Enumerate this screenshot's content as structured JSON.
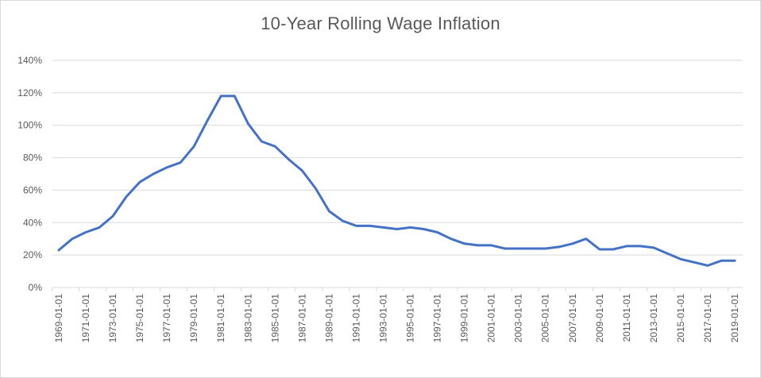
{
  "chart_data": {
    "type": "line",
    "title": "10-Year Rolling Wage Inflation",
    "xlabel": "",
    "ylabel": "",
    "ylim": [
      0,
      1.4
    ],
    "grid": "horizontal",
    "legend": "none",
    "y_ticks": [
      "0%",
      "20%",
      "40%",
      "60%",
      "80%",
      "100%",
      "120%",
      "140%"
    ],
    "x_tick_labels": [
      "1969-01-01",
      "1971-01-01",
      "1973-01-01",
      "1975-01-01",
      "1977-01-01",
      "1979-01-01",
      "1981-01-01",
      "1983-01-01",
      "1985-01-01",
      "1987-01-01",
      "1989-01-01",
      "1991-01-01",
      "1993-01-01",
      "1995-01-01",
      "1997-01-01",
      "1999-01-01",
      "2001-01-01",
      "2003-01-01",
      "2005-01-01",
      "2007-01-01",
      "2009-01-01",
      "2011-01-01",
      "2013-01-01",
      "2015-01-01",
      "2017-01-01",
      "2019-01-01"
    ],
    "series": [
      {
        "name": "10-Year Rolling Wage Inflation",
        "color": "#4472c4",
        "x": [
          1969,
          1970,
          1971,
          1972,
          1973,
          1974,
          1975,
          1976,
          1977,
          1978,
          1979,
          1980,
          1981,
          1982,
          1983,
          1984,
          1985,
          1986,
          1987,
          1988,
          1989,
          1990,
          1991,
          1992,
          1993,
          1994,
          1995,
          1996,
          1997,
          1998,
          1999,
          2000,
          2001,
          2002,
          2003,
          2004,
          2005,
          2006,
          2007,
          2008,
          2009,
          2010,
          2011,
          2012,
          2013,
          2014,
          2015,
          2016,
          2017,
          2018,
          2019
        ],
        "values": [
          0.23,
          0.3,
          0.34,
          0.37,
          0.44,
          0.56,
          0.65,
          0.7,
          0.74,
          0.77,
          0.87,
          1.03,
          1.18,
          1.18,
          1.01,
          0.9,
          0.87,
          0.79,
          0.72,
          0.61,
          0.47,
          0.41,
          0.38,
          0.38,
          0.37,
          0.36,
          0.37,
          0.36,
          0.34,
          0.3,
          0.27,
          0.26,
          0.26,
          0.24,
          0.24,
          0.24,
          0.24,
          0.25,
          0.27,
          0.3,
          0.235,
          0.235,
          0.255,
          0.255,
          0.245,
          0.21,
          0.175,
          0.155,
          0.135,
          0.165,
          0.165
        ]
      }
    ]
  },
  "colors": {
    "line": "#4472c4",
    "grid": "#d9d9d9",
    "text": "#595959"
  }
}
